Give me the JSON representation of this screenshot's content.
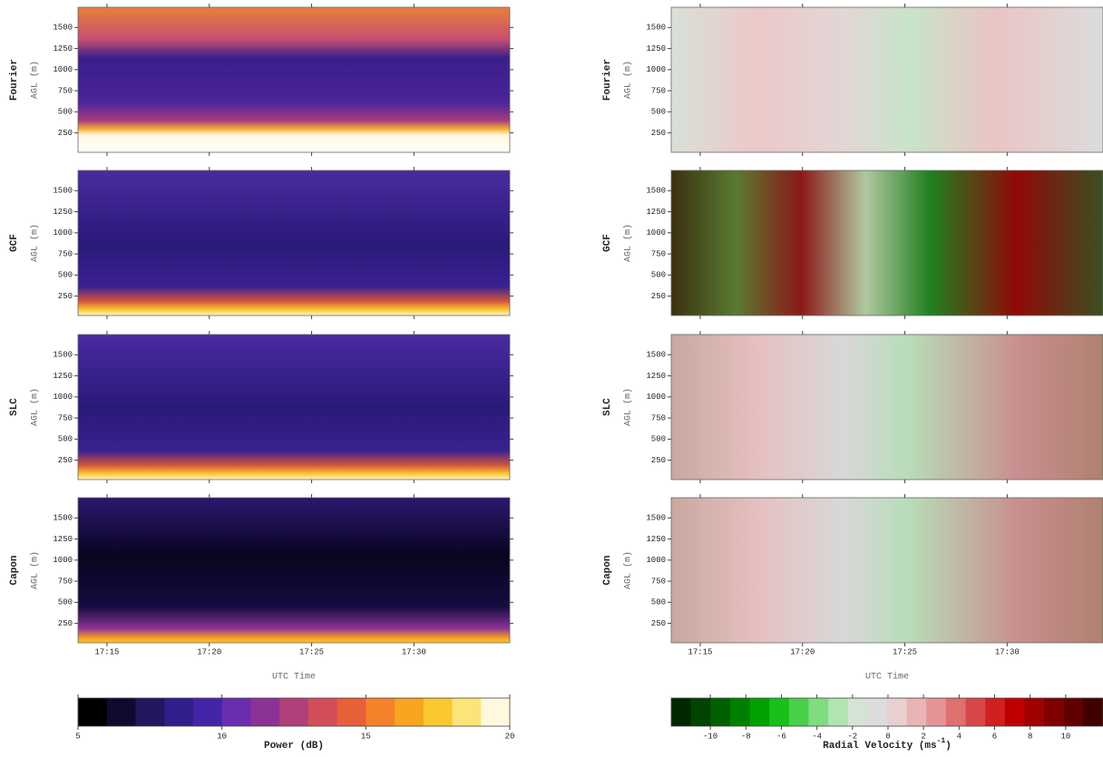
{
  "chart_data": [
    {
      "type": "heatmap",
      "panels": [
        "Fourier",
        "GCF",
        "SLC",
        "Capon"
      ],
      "ylabel": "AGL (m)",
      "ylim": [
        20,
        1740
      ],
      "yticks": [
        250,
        500,
        750,
        1000,
        1250,
        1500
      ],
      "xlim": [
        "17:13:35",
        "17:34:41"
      ],
      "xticks": [
        "17:15",
        "17:20",
        "17:25",
        "17:30"
      ],
      "xlabel": "UTC Time",
      "colorbar": {
        "label": "Power (dB)",
        "lim": [
          5,
          20
        ],
        "ticks": [
          5,
          10,
          15,
          20
        ],
        "colormap": [
          "#000000",
          "#100a30",
          "#221660",
          "#2e1f8a",
          "#4424a8",
          "#6a2cb0",
          "#8c3296",
          "#b0407a",
          "#d24e5a",
          "#e8603a",
          "#f4822a",
          "#f8a420",
          "#fbc830",
          "#fde478",
          "#fff8dc"
        ]
      }
    },
    {
      "type": "heatmap",
      "panels": [
        "Fourier",
        "GCF",
        "SLC",
        "Capon"
      ],
      "ylabel": "AGL (m)",
      "ylim": [
        20,
        1740
      ],
      "yticks": [
        250,
        500,
        750,
        1000,
        1250,
        1500
      ],
      "xlim": [
        "17:13:35",
        "17:34:41"
      ],
      "xticks": [
        "17:15",
        "17:20",
        "17:25",
        "17:30"
      ],
      "xlabel": "UTC Time",
      "colorbar": {
        "label": "Radial Velocity (ms",
        "label_exponent": "-1",
        "label_end": ")",
        "lim": [
          -12.2,
          12.1
        ],
        "ticks": [
          -10,
          -8,
          -6,
          -4,
          -2,
          0,
          2,
          4,
          6,
          8,
          10
        ],
        "colormap": [
          "#002800",
          "#004400",
          "#006000",
          "#008000",
          "#00a000",
          "#18c018",
          "#48d048",
          "#80dc80",
          "#b0e4b0",
          "#d4e4d4",
          "#dcdcdc",
          "#e8d0d0",
          "#eab4b4",
          "#e49494",
          "#de7070",
          "#d84848",
          "#d02020",
          "#c00000",
          "#a00000",
          "#800000",
          "#600000",
          "#400000"
        ]
      }
    }
  ]
}
